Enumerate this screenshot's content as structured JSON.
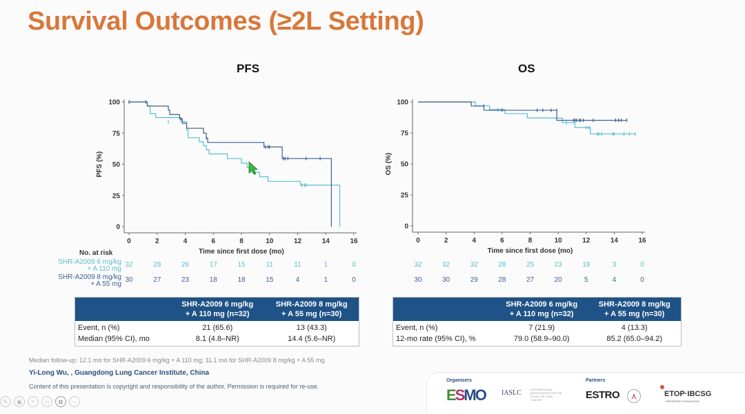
{
  "slide": {
    "title": "Survival Outcomes (≥2L Setting)",
    "colors": {
      "title": "#d9773a",
      "arm1": "#5bbcd6",
      "arm2": "#3b5f93",
      "table_header": "#1f5286"
    }
  },
  "risk_table": {
    "header": "No. at risk",
    "arm1_label_line1": "SHR-A2009 6 mg/kg",
    "arm1_label_line2": "+ A 110 mg",
    "arm2_label_line1": "SHR-A2009 8 mg/kg",
    "arm2_label_line2": "+ A 55 mg"
  },
  "chart_data": [
    {
      "type": "line",
      "subtype": "kaplan-meier",
      "title": "PFS",
      "xlabel": "Time since first dose (mo)",
      "ylabel": "PFS (%)",
      "xlim": [
        0,
        16
      ],
      "ylim": [
        0,
        100
      ],
      "xticks": [
        0,
        2,
        4,
        6,
        8,
        10,
        12,
        14,
        16
      ],
      "yticks": [
        0,
        25,
        50,
        75,
        100
      ],
      "grid": false,
      "series": [
        {
          "name": "SHR-A2009 6 mg/kg + A 110 mg",
          "color": "#5bbcd6",
          "steps": [
            [
              0,
              100
            ],
            [
              1.3,
              96.9
            ],
            [
              1.5,
              90.6
            ],
            [
              1.9,
              87.5
            ],
            [
              3.7,
              84.1
            ],
            [
              4.1,
              77.7
            ],
            [
              4.2,
              71.3
            ],
            [
              5,
              68.1
            ],
            [
              5.3,
              64.9
            ],
            [
              5.5,
              61.6
            ],
            [
              5.7,
              58.3
            ],
            [
              7,
              54.6
            ],
            [
              8,
              50.9
            ],
            [
              8.4,
              47.2
            ],
            [
              8.6,
              43.6
            ],
            [
              9.3,
              40
            ],
            [
              9.9,
              36.3
            ],
            [
              12.2,
              33.3
            ],
            [
              15,
              0
            ]
          ],
          "censors": [
            [
              0,
              100
            ],
            [
              2.8,
              84.1
            ],
            [
              12.3,
              33.3
            ],
            [
              12.5,
              33.3
            ],
            [
              12.6,
              33.3
            ]
          ],
          "at_risk": [
            32,
            28,
            26,
            17,
            15,
            11,
            11,
            1,
            0
          ]
        },
        {
          "name": "SHR-A2009 8 mg/kg + A 55 mg",
          "color": "#3b5f93",
          "steps": [
            [
              0,
              100
            ],
            [
              1.3,
              96.7
            ],
            [
              2.8,
              93.3
            ],
            [
              2.9,
              89.9
            ],
            [
              3.6,
              86.4
            ],
            [
              3.8,
              82.8
            ],
            [
              4.1,
              78.9
            ],
            [
              5.3,
              75
            ],
            [
              5.5,
              71.1
            ],
            [
              5.6,
              67.5
            ],
            [
              9.6,
              63.9
            ],
            [
              10.9,
              54.6
            ],
            [
              14.4,
              0
            ]
          ],
          "censors": [
            [
              0,
              100
            ],
            [
              1.2,
              100
            ],
            [
              3.7,
              86.4
            ],
            [
              5.5,
              71.1
            ],
            [
              9.7,
              63.9
            ],
            [
              9.9,
              63.9
            ],
            [
              10,
              63.9
            ],
            [
              11,
              54.6
            ],
            [
              11.1,
              54.6
            ],
            [
              11.3,
              54.6
            ],
            [
              12.6,
              54.6
            ],
            [
              13.6,
              54.6
            ]
          ],
          "at_risk": [
            30,
            27,
            23,
            18,
            18,
            15,
            4,
            1,
            0
          ]
        }
      ]
    },
    {
      "type": "line",
      "subtype": "kaplan-meier",
      "title": "OS",
      "xlabel": "Time since first dose (mo)",
      "ylabel": "OS (%)",
      "xlim": [
        0,
        16
      ],
      "ylim": [
        0,
        100
      ],
      "xticks": [
        0,
        2,
        4,
        6,
        8,
        10,
        12,
        14,
        16
      ],
      "yticks": [
        0,
        25,
        50,
        75,
        100
      ],
      "grid": false,
      "series": [
        {
          "name": "SHR-A2009 6 mg/kg + A 110 mg",
          "color": "#5bbcd6",
          "steps": [
            [
              0,
              100
            ],
            [
              4.1,
              96.9
            ],
            [
              5.1,
              93.8
            ],
            [
              6.2,
              90.6
            ],
            [
              7.8,
              87.1
            ],
            [
              10.3,
              83.3
            ],
            [
              11.2,
              79.3
            ],
            [
              12.3,
              74.2
            ]
          ],
          "censors": [
            [
              5.7,
              93.8
            ],
            [
              6,
              93.8
            ],
            [
              9.9,
              87.1
            ],
            [
              10.3,
              85
            ],
            [
              10.6,
              83.3
            ],
            [
              12,
              79.3
            ],
            [
              12.2,
              79.3
            ],
            [
              12.8,
              74.2
            ],
            [
              12.9,
              74.2
            ],
            [
              13.1,
              74.2
            ],
            [
              13.9,
              74.2
            ],
            [
              14,
              74.2
            ],
            [
              14.7,
              74.2
            ],
            [
              15.1,
              74.2
            ],
            [
              15.5,
              74.2
            ]
          ],
          "at_risk": [
            32,
            32,
            32,
            28,
            25,
            23,
            18,
            3,
            0
          ]
        },
        {
          "name": "SHR-A2009 8 mg/kg + A 55 mg",
          "color": "#3b5f93",
          "steps": [
            [
              0,
              100
            ],
            [
              3.8,
              96.7
            ],
            [
              4.7,
              93.3
            ],
            [
              9.9,
              85.2
            ]
          ],
          "censors": [
            [
              4.7,
              96.7
            ],
            [
              6,
              93.3
            ],
            [
              8.5,
              93.3
            ],
            [
              8.9,
              93.3
            ],
            [
              9.5,
              93.3
            ],
            [
              9.9,
              93.3
            ],
            [
              11.1,
              85.2
            ],
            [
              11.2,
              85.2
            ],
            [
              11.3,
              85.2
            ],
            [
              11.5,
              85.2
            ],
            [
              11.6,
              85.2
            ],
            [
              11.8,
              85.2
            ],
            [
              12.5,
              85.2
            ],
            [
              14.1,
              85.2
            ],
            [
              14.3,
              85.2
            ],
            [
              14.5,
              85.2
            ],
            [
              14.9,
              85.2
            ]
          ],
          "at_risk": [
            30,
            30,
            29,
            28,
            27,
            20,
            5,
            4,
            0
          ]
        }
      ]
    }
  ],
  "pfs_table": {
    "col1": "",
    "col2_line1": "SHR-A2009 6 mg/kg",
    "col2_line2": "+ A 110 mg (n=32)",
    "col3_line1": "SHR-A2009 8 mg/kg",
    "col3_line2": "+ A 55 mg (n=30)",
    "rows": [
      {
        "label": "Event, n (%)",
        "arm1": "21 (65.6)",
        "arm2": "13 (43.3)"
      },
      {
        "label": "Median (95% CI), mo",
        "arm1": "8.1 (4.8–NR)",
        "arm2": "14.4 (5.6–NR)"
      }
    ]
  },
  "os_table": {
    "col1": "",
    "col2_line1": "SHR-A2009 6 mg/kg",
    "col2_line2": "+ A 110 mg (n=32)",
    "col3_line1": "SHR-A2009 8 mg/kg",
    "col3_line2": "+ A 55 mg (n=30)",
    "rows": [
      {
        "label": "Event, n (%)",
        "arm1": "7 (21.9)",
        "arm2": "4 (13.3)"
      },
      {
        "label": "12-mo rate (95% CI), %",
        "arm1": "79.0 (58.9–90.0)",
        "arm2": "85.2 (65.0–94.2)"
      }
    ]
  },
  "footer": {
    "follow_up": "Median follow-up: 12.1 mo for SHR-A2009 6 mg/kg + A 110 mg; 11.1 mo for SHR-A2009 8 mg/kg + A 55 mg.",
    "author": "Yi-Long Wu, , Guangdong Lung Cancer Institute, China",
    "copyright": "Content of this presentation is copyright and responsibility of the author. Permission is required for re-use."
  },
  "sponsors": {
    "organisers_label": "Organisers",
    "partners_label": "Partners",
    "esmo": "ESMO",
    "iaslc": "IASLC",
    "iaslc_sub": "INTERNATIONAL ASSOCIATION FOR THE STUDY OF LUNG CANCER",
    "estro": "ESTRO",
    "etop": "ETOP·IBCSG",
    "etop_sub": "PARTNERS FOUNDATION"
  },
  "viewer_toolbar": {
    "buttons": [
      "pen-icon",
      "save-icon",
      "zoom-icon",
      "subtitle-icon",
      "camera-icon",
      "more-icon"
    ]
  }
}
